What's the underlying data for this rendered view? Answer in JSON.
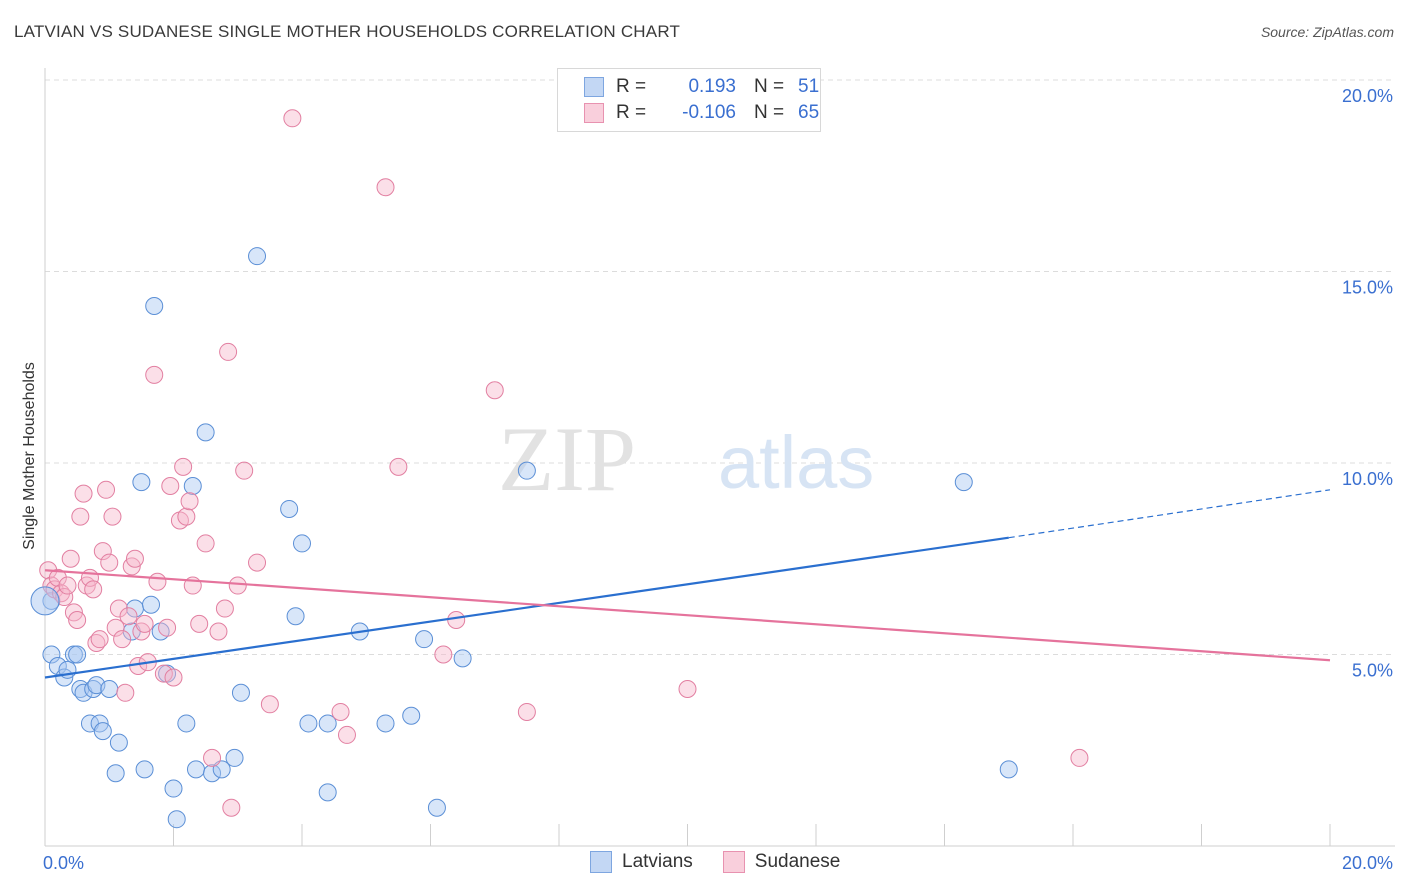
{
  "header": {
    "title": "LATVIAN VS SUDANESE SINGLE MOTHER HOUSEHOLDS CORRELATION CHART",
    "source": "Source: ZipAtlas.com"
  },
  "legend": {
    "rows": [
      {
        "r_label": "R =",
        "r_value": "0.193",
        "n_label": "N =",
        "n_value": "51"
      },
      {
        "r_label": "R =",
        "r_value": "-0.106",
        "n_label": "N =",
        "n_value": "65"
      }
    ],
    "series": [
      "Latvians",
      "Sudanese"
    ]
  },
  "watermark": {
    "left": "ZIP",
    "right": "atlas"
  },
  "colors": {
    "latvians_fill": "#a9c7f2",
    "latvians_stroke": "#5b8fd6",
    "latvians_line": "#2a6fcf",
    "sudanese_fill": "#f6b8cb",
    "sudanese_stroke": "#e27fa1",
    "sudanese_line": "#e5739c",
    "tick_text": "#3a6fd0"
  },
  "chart_data": {
    "type": "scatter",
    "title": "LATVIAN VS SUDANESE SINGLE MOTHER HOUSEHOLDS CORRELATION CHART",
    "ylabel": "Single Mother Households",
    "xlabel": "",
    "xlim": [
      0,
      20
    ],
    "ylim": [
      0,
      20
    ],
    "x_tick_labels": [
      "0.0%",
      "20.0%"
    ],
    "y_ticks": [
      5,
      10,
      15,
      20
    ],
    "y_tick_labels": [
      "5.0%",
      "10.0%",
      "15.0%",
      "20.0%"
    ],
    "grid": true,
    "series": [
      {
        "name": "Latvians",
        "r": 0.193,
        "n": 51,
        "trend": {
          "x0": 0,
          "y0": 4.4,
          "x1": 15.0,
          "y1": 8.05,
          "dash_to_x": 20,
          "dash_to_y": 9.3
        },
        "points": [
          [
            0.1,
            5.0
          ],
          [
            0.1,
            6.4
          ],
          [
            0.2,
            4.7
          ],
          [
            0.3,
            4.4
          ],
          [
            0.35,
            4.6
          ],
          [
            0.45,
            5.0
          ],
          [
            0.5,
            5.0
          ],
          [
            0.55,
            4.1
          ],
          [
            0.6,
            4.0
          ],
          [
            0.7,
            3.2
          ],
          [
            0.75,
            4.1
          ],
          [
            0.8,
            4.2
          ],
          [
            0.85,
            3.2
          ],
          [
            0.9,
            3.0
          ],
          [
            1.0,
            4.1
          ],
          [
            1.1,
            1.9
          ],
          [
            1.15,
            2.7
          ],
          [
            1.35,
            5.6
          ],
          [
            1.4,
            6.2
          ],
          [
            1.5,
            9.5
          ],
          [
            1.55,
            2.0
          ],
          [
            1.65,
            6.3
          ],
          [
            1.7,
            14.1
          ],
          [
            1.8,
            5.6
          ],
          [
            1.9,
            4.5
          ],
          [
            2.0,
            1.5
          ],
          [
            2.05,
            0.7
          ],
          [
            2.2,
            3.2
          ],
          [
            2.3,
            9.4
          ],
          [
            2.35,
            2.0
          ],
          [
            2.5,
            10.8
          ],
          [
            2.6,
            1.9
          ],
          [
            2.75,
            2.0
          ],
          [
            2.95,
            2.3
          ],
          [
            3.05,
            4.0
          ],
          [
            3.3,
            15.4
          ],
          [
            3.8,
            8.8
          ],
          [
            3.9,
            6.0
          ],
          [
            4.0,
            7.9
          ],
          [
            4.1,
            3.2
          ],
          [
            4.4,
            1.4
          ],
          [
            4.4,
            3.2
          ],
          [
            4.9,
            5.6
          ],
          [
            5.3,
            3.2
          ],
          [
            5.7,
            3.4
          ],
          [
            5.9,
            5.4
          ],
          [
            6.1,
            1.0
          ],
          [
            6.5,
            4.9
          ],
          [
            7.5,
            9.8
          ],
          [
            14.3,
            9.5
          ],
          [
            15.0,
            2.0
          ]
        ]
      },
      {
        "name": "Sudanese",
        "r": -0.106,
        "n": 65,
        "trend": {
          "x0": 0,
          "y0": 7.2,
          "x1": 20,
          "y1": 4.85
        },
        "points": [
          [
            0.05,
            7.2
          ],
          [
            0.1,
            6.8
          ],
          [
            0.15,
            6.7
          ],
          [
            0.2,
            7.0
          ],
          [
            0.25,
            6.6
          ],
          [
            0.3,
            6.5
          ],
          [
            0.35,
            6.8
          ],
          [
            0.4,
            7.5
          ],
          [
            0.45,
            6.1
          ],
          [
            0.5,
            5.9
          ],
          [
            0.55,
            8.6
          ],
          [
            0.6,
            9.2
          ],
          [
            0.65,
            6.8
          ],
          [
            0.7,
            7.0
          ],
          [
            0.75,
            6.7
          ],
          [
            0.8,
            5.3
          ],
          [
            0.85,
            5.4
          ],
          [
            0.9,
            7.7
          ],
          [
            0.95,
            9.3
          ],
          [
            1.0,
            7.4
          ],
          [
            1.05,
            8.6
          ],
          [
            1.1,
            5.7
          ],
          [
            1.15,
            6.2
          ],
          [
            1.2,
            5.4
          ],
          [
            1.25,
            4.0
          ],
          [
            1.3,
            6.0
          ],
          [
            1.35,
            7.3
          ],
          [
            1.4,
            7.5
          ],
          [
            1.45,
            4.7
          ],
          [
            1.5,
            5.6
          ],
          [
            1.55,
            5.8
          ],
          [
            1.6,
            4.8
          ],
          [
            1.7,
            12.3
          ],
          [
            1.75,
            6.9
          ],
          [
            1.85,
            4.5
          ],
          [
            1.9,
            5.7
          ],
          [
            1.95,
            9.4
          ],
          [
            2.0,
            4.4
          ],
          [
            2.1,
            8.5
          ],
          [
            2.15,
            9.9
          ],
          [
            2.2,
            8.6
          ],
          [
            2.25,
            9.0
          ],
          [
            2.3,
            6.8
          ],
          [
            2.4,
            5.8
          ],
          [
            2.5,
            7.9
          ],
          [
            2.6,
            2.3
          ],
          [
            2.7,
            5.6
          ],
          [
            2.8,
            6.2
          ],
          [
            2.85,
            12.9
          ],
          [
            2.9,
            1.0
          ],
          [
            3.0,
            6.8
          ],
          [
            3.1,
            9.8
          ],
          [
            3.3,
            7.4
          ],
          [
            3.5,
            3.7
          ],
          [
            3.85,
            19.0
          ],
          [
            4.6,
            3.5
          ],
          [
            4.7,
            2.9
          ],
          [
            5.3,
            17.2
          ],
          [
            5.5,
            9.9
          ],
          [
            6.2,
            5.0
          ],
          [
            6.4,
            5.9
          ],
          [
            7.0,
            11.9
          ],
          [
            7.5,
            3.5
          ],
          [
            10.0,
            4.1
          ],
          [
            16.1,
            2.3
          ]
        ]
      }
    ]
  }
}
